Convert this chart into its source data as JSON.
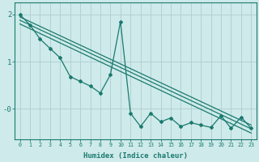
{
  "background_color": "#ceeaea",
  "line_color": "#1a7a6e",
  "grid_color": "#aecece",
  "xlabel": "Humidex (Indice chaleur)",
  "ytick_values": [
    2.0,
    1.0,
    0.0
  ],
  "ytick_labels": [
    "2",
    "1",
    "-0"
  ],
  "xlim": [
    -0.5,
    23.5
  ],
  "ylim": [
    -0.65,
    2.25
  ],
  "x_data": [
    0,
    1,
    2,
    3,
    4,
    5,
    6,
    7,
    8,
    9,
    10,
    11,
    12,
    13,
    14,
    15,
    16,
    17,
    18,
    19,
    20,
    21,
    22,
    23
  ],
  "y_jagged": [
    2.0,
    1.78,
    1.48,
    1.28,
    1.08,
    0.68,
    0.58,
    0.48,
    0.33,
    0.72,
    1.85,
    -0.1,
    -0.38,
    -0.1,
    -0.28,
    -0.2,
    -0.38,
    -0.3,
    -0.35,
    -0.4,
    -0.15,
    -0.42,
    -0.18,
    -0.42
  ],
  "trend1_x": [
    0,
    23
  ],
  "trend1_y": [
    1.95,
    -0.35
  ],
  "trend2_x": [
    0,
    23
  ],
  "trend2_y": [
    1.88,
    -0.43
  ],
  "trend3_x": [
    0,
    23
  ],
  "trend3_y": [
    1.8,
    -0.52
  ],
  "xtick_labels": [
    "0",
    "1",
    "2",
    "3",
    "4",
    "5",
    "6",
    "7",
    "8",
    "9",
    "10",
    "11",
    "12",
    "13",
    "14",
    "15",
    "16",
    "17",
    "18",
    "19",
    "20",
    "21",
    "22",
    "23"
  ]
}
